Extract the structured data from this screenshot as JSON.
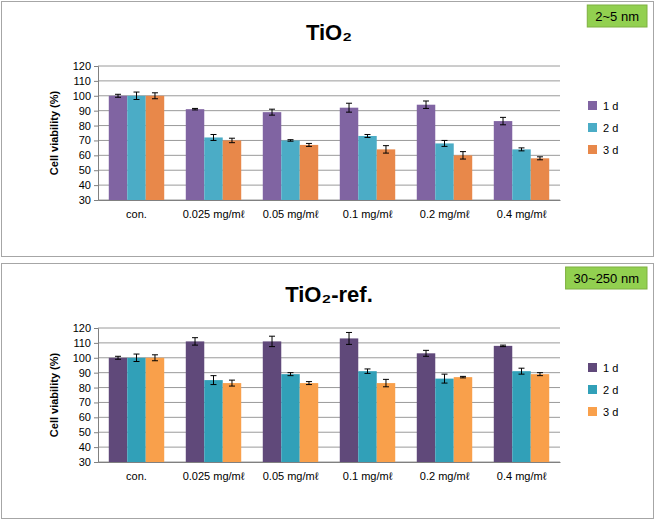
{
  "chart_data": [
    {
      "type": "bar",
      "title": "TiO₂",
      "annotations": [
        "2~5 nm"
      ],
      "y_label": "Cell viability (%)",
      "categories": [
        "con.",
        "0.025 mg/mℓ",
        "0.05 mg/mℓ",
        "0.1 mg/mℓ",
        "0.2 mg/mℓ",
        "0.4 mg/mℓ"
      ],
      "series": [
        {
          "name": "1 d",
          "color": "#8064a2",
          "values": [
            100,
            91,
            89,
            92,
            94,
            83
          ],
          "errors": [
            1,
            0.5,
            2,
            3,
            2.5,
            2.5
          ]
        },
        {
          "name": "2 d",
          "color": "#4bacc6",
          "values": [
            100,
            72,
            70,
            73,
            68,
            64
          ],
          "errors": [
            2.5,
            2,
            0.5,
            1,
            2,
            1
          ]
        },
        {
          "name": "3 d",
          "color": "#e8884a",
          "values": [
            100,
            70,
            67,
            64,
            60,
            58
          ],
          "errors": [
            2,
            1.5,
            1,
            2.5,
            2.5,
            1
          ]
        }
      ],
      "ylim": [
        30,
        120
      ],
      "yticks": [
        30,
        40,
        50,
        60,
        70,
        80,
        90,
        100,
        110,
        120
      ],
      "grid": true,
      "legend": "right"
    },
    {
      "type": "bar",
      "title": "TiO₂-ref.",
      "annotations": [
        "30~250 nm"
      ],
      "y_label": "Cell viability (%)",
      "categories": [
        "con.",
        "0.025 mg/mℓ",
        "0.05 mg/mℓ",
        "0.1 mg/mℓ",
        "0.2 mg/mℓ",
        "0.4 mg/mℓ"
      ],
      "series": [
        {
          "name": "1 d",
          "color": "#60497a",
          "values": [
            100,
            111,
            111,
            113,
            103,
            108
          ],
          "errors": [
            1,
            2.5,
            3.5,
            4,
            2,
            0.5
          ]
        },
        {
          "name": "2 d",
          "color": "#31a0b8",
          "values": [
            100,
            85,
            89,
            91,
            86,
            91
          ],
          "errors": [
            2.5,
            3,
            1,
            1.5,
            3,
            2
          ]
        },
        {
          "name": "3 d",
          "color": "#f9a04b",
          "values": [
            100,
            83,
            83,
            83,
            87,
            89
          ],
          "errors": [
            2,
            2,
            1,
            2.5,
            0.5,
            1
          ]
        }
      ],
      "ylim": [
        30,
        120
      ],
      "yticks": [
        30,
        40,
        50,
        60,
        70,
        80,
        90,
        100,
        110,
        120
      ],
      "grid": true,
      "legend": "right"
    }
  ]
}
